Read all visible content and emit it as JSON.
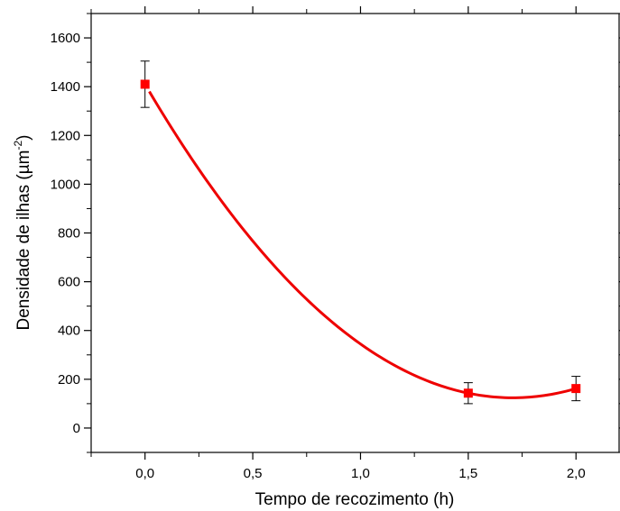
{
  "chart_data": {
    "type": "scatter",
    "title": "",
    "xlabel": "Tempo de recozimento (h)",
    "ylabel": {
      "prefix": "Densidade de ilhas (",
      "unit": "µm",
      "superscript": "-2",
      "suffix": ")"
    },
    "xlim": [
      -0.25,
      2.2
    ],
    "ylim": [
      -100,
      1700
    ],
    "x_ticks": [
      0.0,
      0.5,
      1.0,
      1.5,
      2.0
    ],
    "x_tick_labels": [
      "0,0",
      "0,5",
      "1,0",
      "1,5",
      "2,0"
    ],
    "y_ticks": [
      0,
      200,
      400,
      600,
      800,
      1000,
      1200,
      1400,
      1600
    ],
    "y_tick_labels": [
      "0",
      "200",
      "400",
      "600",
      "800",
      "1000",
      "1200",
      "1400",
      "1600"
    ],
    "grid": false,
    "legend": "none",
    "series": [
      {
        "x": [
          0.0,
          1.5,
          2.0
        ],
        "y": [
          1410,
          143,
          162
        ],
        "y_error": [
          95,
          43,
          50
        ],
        "marker": "square",
        "color": "#ff0000"
      }
    ],
    "fit_curve": {
      "type": "quadratic",
      "x_range": [
        0.02,
        2.0
      ],
      "color": "#ee0000"
    }
  }
}
